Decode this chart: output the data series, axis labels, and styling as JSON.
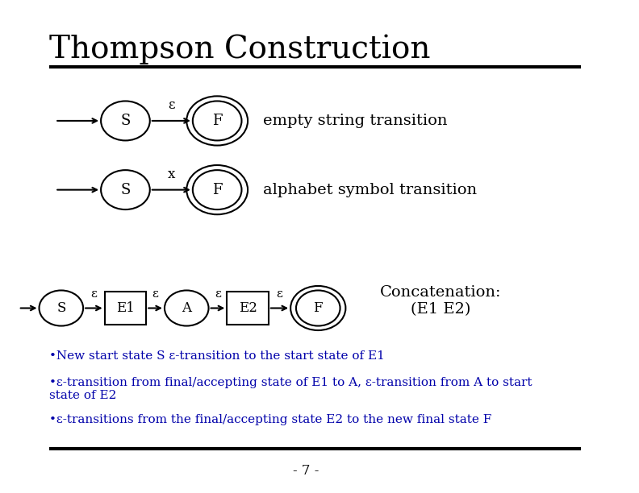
{
  "title": "Thompson Construction",
  "bg_color": "#ffffff",
  "text_color": "#000000",
  "blue_color": "#0000aa",
  "title_fontsize": 28,
  "epsilon": "ε",
  "row1_label": "empty string transition",
  "row2_label": "alphabet symbol transition",
  "concat_label": "Concatenation:\n(E1 E2)",
  "bullet1": "•New start state S ε-transition to the start state of E1",
  "bullet2": "•ε-transition from final/accepting state of E1 to A, ε-transition from A to start\nstate of E2",
  "bullet3": "•ε-transitions from the final/accepting state E2 to the new final state F",
  "page_num": "- 7 -"
}
